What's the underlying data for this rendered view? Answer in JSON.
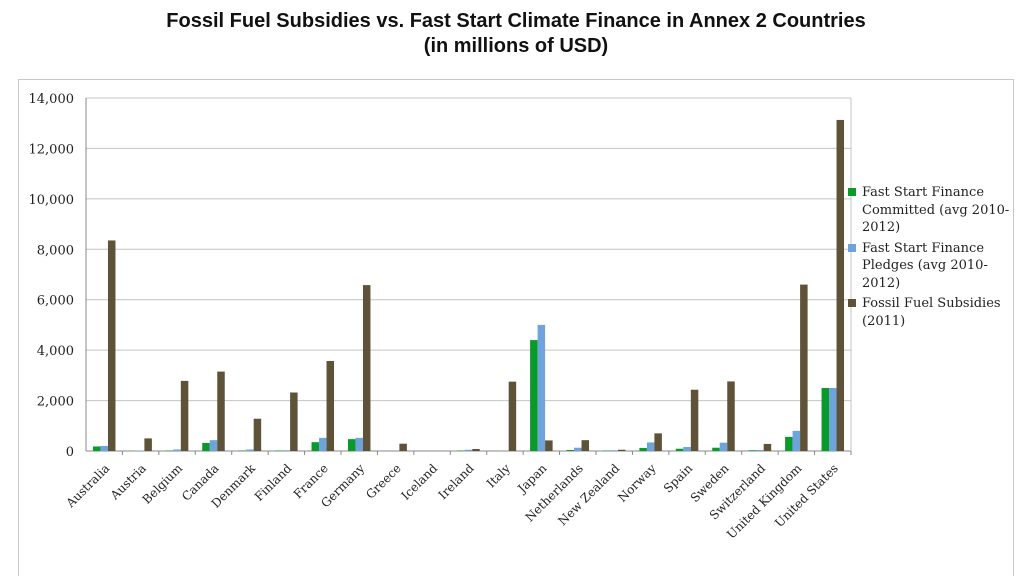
{
  "title_line1": "Fossil Fuel Subsidies vs. Fast Start Climate Finance in Annex 2 Countries",
  "title_line2": "(in millions of USD)",
  "chart_data": {
    "type": "bar",
    "categories": [
      "Australia",
      "Austria",
      "Belgium",
      "Canada",
      "Denmark",
      "Finland",
      "France",
      "Germany",
      "Greece",
      "Iceland",
      "Ireland",
      "Italy",
      "Japan",
      "Netherlands",
      "New Zealand",
      "Norway",
      "Spain",
      "Sweden",
      "Switzerland",
      "United Kingdom",
      "United States"
    ],
    "series": [
      {
        "name": "Fast Start Finance Committed (avg 2010-2012)",
        "color": "#0a9a2a",
        "values": [
          180,
          0,
          20,
          320,
          20,
          20,
          350,
          470,
          0,
          0,
          20,
          0,
          4400,
          40,
          20,
          120,
          90,
          130,
          30,
          560,
          2500
        ]
      },
      {
        "name": "Fast Start Finance Pledges (avg 2010-2012)",
        "color": "#6fa3dc",
        "values": [
          200,
          20,
          60,
          430,
          60,
          30,
          520,
          520,
          0,
          0,
          50,
          0,
          5000,
          130,
          30,
          340,
          160,
          330,
          40,
          800,
          2500
        ]
      },
      {
        "name": "Fossil Fuel Subsidies (2011)",
        "color": "#5e5338",
        "values": [
          8350,
          500,
          2780,
          3150,
          1280,
          2320,
          3570,
          6580,
          290,
          0,
          80,
          2750,
          420,
          430,
          50,
          700,
          2430,
          2760,
          280,
          6600,
          13130
        ]
      }
    ],
    "y_tick_labels": [
      "0",
      "2,000",
      "4,000",
      "6,000",
      "8,000",
      "10,000",
      "12,000",
      "14,000"
    ],
    "ylim": [
      0,
      14000
    ],
    "grid": true,
    "legend_position": "right"
  }
}
